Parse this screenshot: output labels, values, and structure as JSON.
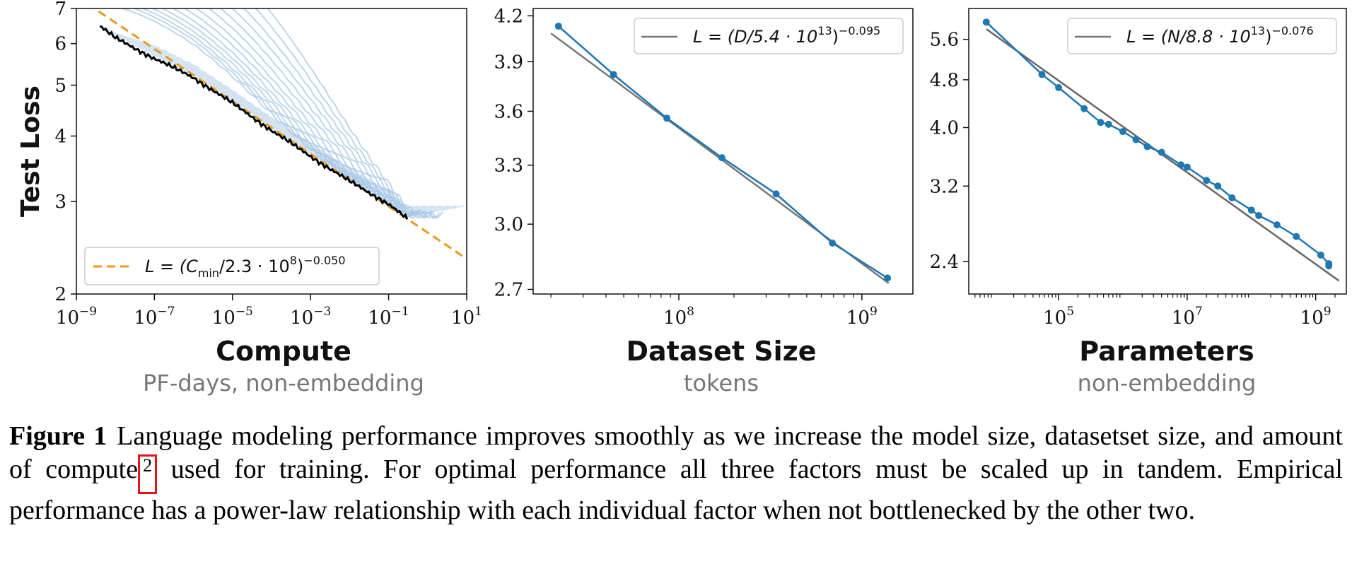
{
  "figure": {
    "caption_label": "Figure 1",
    "caption_fn_marker": "2",
    "caption_text_before": "Language modeling performance improves smoothly as we increase the model size, datasetset size, and amount of compute",
    "caption_text_after": " used for training. For optimal performance all three factors must be scaled up in tandem. Empirical performance has a power-law relationship with each individual factor when not bottlenecked by the other two.",
    "colors": {
      "curve_light": "#a7c7e7",
      "curve_fit": "#e89a1c",
      "frontier": "#000000",
      "data_blue": "#1f77b4",
      "fit_gray": "#777777"
    }
  },
  "chart_data": [
    {
      "type": "line",
      "title": "",
      "ylabel": "Test Loss",
      "xlabel": "Compute",
      "xlabel_sub": "PF-days, non-embedding",
      "x_scale": "log",
      "y_scale": "log",
      "xlim": [
        1e-09,
        10
      ],
      "ylim": [
        2,
        7
      ],
      "x_ticks": [
        {
          "base": "10",
          "exp": "−9"
        },
        {
          "base": "10",
          "exp": "−7"
        },
        {
          "base": "10",
          "exp": "−5"
        },
        {
          "base": "10",
          "exp": "−3"
        },
        {
          "base": "10",
          "exp": "−1"
        },
        {
          "base": "10",
          "exp": "1"
        }
      ],
      "x_tick_values": [
        1e-09,
        1e-07,
        1e-05,
        0.001,
        0.1,
        10
      ],
      "y_ticks": [
        "2",
        "3",
        "4",
        "5",
        "6",
        "7"
      ],
      "y_tick_values": [
        2,
        3,
        4,
        5,
        6,
        7
      ],
      "legend": {
        "location": "lower-left",
        "entries": [
          {
            "label_main": "L = (C",
            "label_sub": "min",
            "label_mid": "/2.3 · 10",
            "label_sup1": "8",
            "label_close": ")",
            "label_sup2": "−0.050",
            "style": "dashed-orange"
          }
        ]
      },
      "series": [
        {
          "name": "fit",
          "a": 230000000.0,
          "alpha": 0.05,
          "style": "dashed"
        },
        {
          "name": "frontier",
          "x": [
            4e-09,
            1e-08,
            1e-07,
            1e-06,
            1e-05,
            0.0001,
            0.001,
            0.01,
            0.1,
            0.3
          ],
          "y": [
            6.48,
            6.15,
            5.62,
            5.17,
            4.62,
            4.1,
            3.66,
            3.28,
            2.97,
            2.78
          ]
        }
      ],
      "light_curves": [
        {
          "x0": 1.5e-08,
          "y0": 7.0,
          "x_end": 0.015
        },
        {
          "x0": 3e-08,
          "y0": 7.0,
          "x_end": 0.02
        },
        {
          "x0": 5e-08,
          "y0": 7.0,
          "x_end": 0.03
        },
        {
          "x0": 9e-08,
          "y0": 7.0,
          "x_end": 0.05
        },
        {
          "x0": 1.6e-07,
          "y0": 7.0,
          "x_end": 0.08
        },
        {
          "x0": 3e-07,
          "y0": 7.0,
          "x_end": 0.12
        },
        {
          "x0": 6e-07,
          "y0": 7.0,
          "x_end": 0.2
        },
        {
          "x0": 1.2e-06,
          "y0": 7.0,
          "x_end": 0.3
        },
        {
          "x0": 2.5e-06,
          "y0": 7.0,
          "x_end": 0.5
        },
        {
          "x0": 5e-06,
          "y0": 7.0,
          "x_end": 0.8
        },
        {
          "x0": 1e-05,
          "y0": 7.0,
          "x_end": 1.2
        },
        {
          "x0": 2e-05,
          "y0": 7.0,
          "x_end": 1.6
        },
        {
          "x0": 4e-05,
          "y0": 7.0,
          "x_end": 2.0
        },
        {
          "x0": 8e-05,
          "y0": 7.0,
          "x_end": 2.5
        }
      ]
    },
    {
      "type": "line",
      "title": "",
      "xlabel": "Dataset Size",
      "xlabel_sub": "tokens",
      "x_scale": "log",
      "y_scale": "log",
      "xlim": [
        16000000.0,
        1900000000.0
      ],
      "ylim": [
        2.68,
        4.25
      ],
      "x_ticks": [
        {
          "base": "10",
          "exp": "8"
        },
        {
          "base": "10",
          "exp": "9"
        }
      ],
      "x_tick_values": [
        100000000.0,
        1000000000.0
      ],
      "y_ticks": [
        "2.7",
        "3.0",
        "3.3",
        "3.6",
        "3.9",
        "4.2"
      ],
      "y_tick_values": [
        2.7,
        3.0,
        3.3,
        3.6,
        3.9,
        4.2
      ],
      "legend": {
        "location": "top-right",
        "entries": [
          {
            "label_main": "L = (D/5.4 · 10",
            "label_sup1": "13",
            "label_close": ")",
            "label_sup2": "−0.095",
            "style": "solid-gray"
          }
        ]
      },
      "series": [
        {
          "name": "data",
          "x": [
            22000000.0,
            44000000.0,
            86000000.0,
            172000000.0,
            340000000.0,
            690000000.0,
            1380000000.0
          ],
          "y": [
            4.13,
            3.82,
            3.56,
            3.34,
            3.15,
            2.91,
            2.75
          ]
        },
        {
          "name": "fit",
          "a": 54000000000000.0,
          "alpha": 0.095,
          "x_range": [
            20000000.0,
            1400000000.0
          ]
        }
      ]
    },
    {
      "type": "line",
      "title": "",
      "xlabel": "Parameters",
      "xlabel_sub": "non-embedding",
      "x_scale": "log",
      "y_scale": "log",
      "xlim": [
        4000.0,
        3000000000.0
      ],
      "ylim": [
        2.12,
        6.3
      ],
      "x_ticks": [
        {
          "base": "10",
          "exp": "5"
        },
        {
          "base": "10",
          "exp": "7"
        },
        {
          "base": "10",
          "exp": "9"
        }
      ],
      "x_tick_values": [
        100000.0,
        10000000.0,
        1000000000.0
      ],
      "y_ticks": [
        "2.4",
        "3.2",
        "4.0",
        "4.8",
        "5.6"
      ],
      "y_tick_values": [
        2.4,
        3.2,
        4.0,
        4.8,
        5.6
      ],
      "legend": {
        "location": "top-right",
        "entries": [
          {
            "label_main": "L = (N/8.8 · 10",
            "label_sup1": "13",
            "label_close": ")",
            "label_sup2": "−0.076",
            "style": "solid-gray"
          }
        ]
      },
      "series": [
        {
          "name": "data",
          "x": [
            7500.0,
            55000.0,
            100000.0,
            250000.0,
            450000.0,
            600000.0,
            1000000.0,
            1600000.0,
            2400000.0,
            4000000.0,
            8000000.0,
            10000000.0,
            20000000.0,
            30000000.0,
            50000000.0,
            100000000.0,
            130000000.0,
            250000000.0,
            500000000.0,
            1200000000.0,
            1600000000.0,
            1600000000.0
          ],
          "y": [
            5.98,
            4.9,
            4.66,
            4.3,
            4.08,
            4.05,
            3.94,
            3.82,
            3.72,
            3.64,
            3.47,
            3.44,
            3.27,
            3.2,
            3.06,
            2.92,
            2.86,
            2.76,
            2.64,
            2.46,
            2.38,
            2.36
          ]
        },
        {
          "name": "fit",
          "a": 88000000000000.0,
          "alpha": 0.076,
          "x_range": [
            7500.0,
            2300000000.0
          ]
        }
      ]
    }
  ]
}
